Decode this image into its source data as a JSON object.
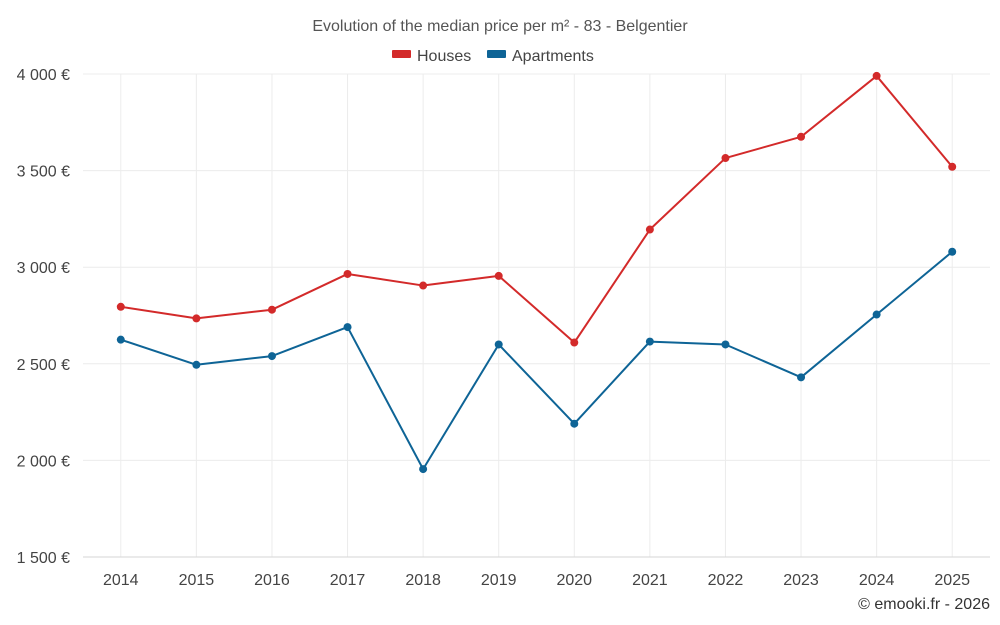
{
  "chart_data": {
    "type": "line",
    "title": "Evolution of the median price per m² - 83 - Belgentier",
    "xlabel": "",
    "ylabel": "",
    "categories": [
      "2014",
      "2015",
      "2016",
      "2017",
      "2018",
      "2019",
      "2020",
      "2021",
      "2022",
      "2023",
      "2024",
      "2025"
    ],
    "ylim": [
      1500,
      4000
    ],
    "yticks": [
      1500,
      2000,
      2500,
      3000,
      3500,
      4000
    ],
    "ytick_labels": [
      "1 500 €",
      "2 000 €",
      "2 500 €",
      "3 000 €",
      "3 500 €",
      "4 000 €"
    ],
    "grid": true,
    "legend_position": "top-center",
    "series": [
      {
        "name": "Houses",
        "color": "#d32a2a",
        "values": [
          2795,
          2735,
          2780,
          2965,
          2905,
          2955,
          2610,
          3195,
          3565,
          3675,
          3990,
          3520
        ]
      },
      {
        "name": "Apartments",
        "color": "#0e6496",
        "values": [
          2625,
          2495,
          2540,
          2690,
          1955,
          2600,
          2190,
          2615,
          2600,
          2430,
          2755,
          3080
        ]
      }
    ]
  },
  "credit": "© emooki.fr - 2026"
}
